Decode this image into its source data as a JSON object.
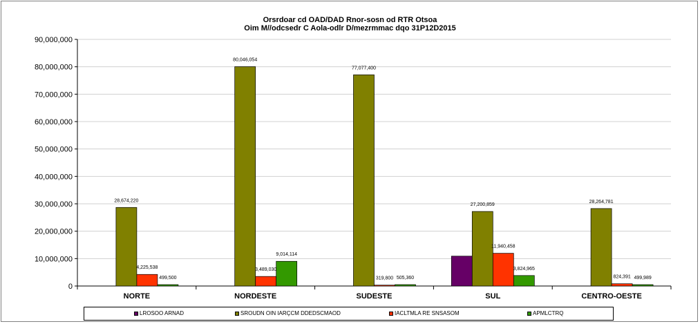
{
  "chart_data": {
    "type": "bar",
    "title": "Orsrdoar cd OAD/DAD Rnor-sosn od RTR Otsoa",
    "subtitle": "Oim M//odcsedr C Aola-odlr D/mezrmmac dqo 31P12D2015",
    "xlabel": "",
    "ylabel": "",
    "categories": [
      "NORTE",
      "NORDESTE",
      "SUDESTE",
      "SUL",
      "CENTRO-OESTE"
    ],
    "ylim": [
      0,
      90000000
    ],
    "yticks": [
      0,
      10000000,
      20000000,
      30000000,
      40000000,
      50000000,
      60000000,
      70000000,
      80000000,
      90000000
    ],
    "ytick_labels": [
      "0",
      "10,000,000",
      "20,000,000",
      "30,000,000",
      "40,000,000",
      "50,000,000",
      "60,000,000",
      "70,000,000",
      "80,000,000",
      "90,000,000"
    ],
    "grid": true,
    "legend_position": "bottom",
    "series": [
      {
        "name": "LROSOO ARNAD",
        "color": "#660066",
        "values": [
          0,
          0,
          0,
          10900000,
          0
        ],
        "labels": [
          "",
          "",
          "",
          "",
          ""
        ]
      },
      {
        "name": "SROUDN OIN IARÇCM DDEDSCMAOD",
        "color": "#808000",
        "values": [
          28674220,
          80046054,
          77077400,
          27200859,
          28264781
        ],
        "labels": [
          "28,674,220",
          "80,046,054",
          "77,077,400",
          "27,200,859",
          "28,264,781"
        ]
      },
      {
        "name": "IACLTMLA RE SNSASOM",
        "color": "#ff3300",
        "values": [
          4225538,
          3489030,
          319800,
          11940458,
          824391
        ],
        "labels": [
          "4,225,538",
          "3,489,030",
          "319,800",
          "11,940,458",
          "824,391"
        ]
      },
      {
        "name": "APMLCTRQ",
        "color": "#339900",
        "values": [
          499500,
          9014114,
          505360,
          3824965,
          499989
        ],
        "labels": [
          "499,500",
          "9,014,114",
          "505,360",
          "3,824,965",
          "499,989"
        ]
      }
    ]
  }
}
